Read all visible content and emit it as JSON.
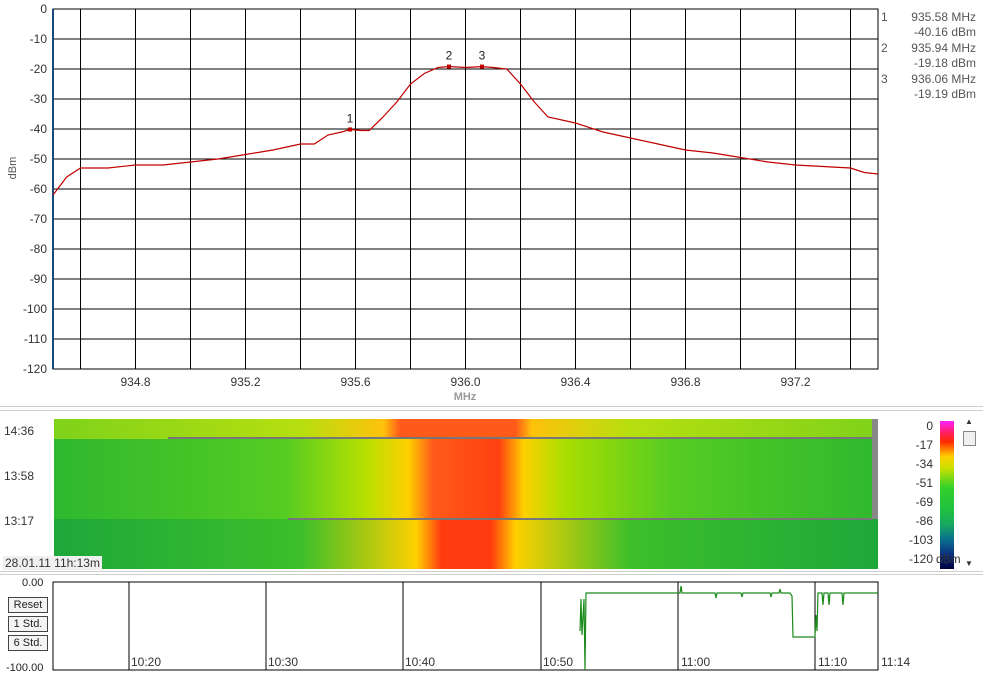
{
  "spectrum": {
    "y_axis_label": "dBm",
    "x_axis_label": "MHz",
    "y_ticks": [
      "0",
      "-10",
      "-20",
      "-30",
      "-40",
      "-50",
      "-60",
      "-70",
      "-80",
      "-90",
      "-100",
      "-110",
      "-120"
    ],
    "x_ticks": [
      "934.8",
      "935.2",
      "935.6",
      "936.0",
      "936.4",
      "936.8",
      "937.2"
    ],
    "trace_color": "#c00000",
    "markers": [
      {
        "num": "1",
        "freq": "935.58 MHz",
        "level": "-40.16 dBm"
      },
      {
        "num": "2",
        "freq": "935.94 MHz",
        "level": "-19.18 dBm"
      },
      {
        "num": "3",
        "freq": "936.06 MHz",
        "level": "-19.19 dBm"
      }
    ]
  },
  "chart_data": {
    "type": "line",
    "xlabel": "MHz",
    "ylabel": "dBm",
    "xlim": [
      934.5,
      937.5
    ],
    "ylim": [
      -120,
      0
    ],
    "series": [
      {
        "x": [
          934.5,
          934.55,
          934.6,
          934.65,
          934.7,
          934.8,
          934.9,
          935.0,
          935.1,
          935.2,
          935.3,
          935.4,
          935.45,
          935.5,
          935.55,
          935.58,
          935.62,
          935.65,
          935.7,
          935.75,
          935.8,
          935.85,
          935.9,
          935.94,
          936.0,
          936.06,
          936.1,
          936.15,
          936.2,
          936.25,
          936.3,
          936.4,
          936.5,
          936.6,
          936.7,
          936.8,
          936.9,
          937.0,
          937.1,
          937.2,
          937.3,
          937.4,
          937.45,
          937.5
        ],
        "y": [
          -62,
          -56,
          -53,
          -53,
          -53,
          -52,
          -52,
          -51,
          -50,
          -48.5,
          -47,
          -45,
          -45,
          -42,
          -41,
          -40.16,
          -40.5,
          -40.5,
          -36,
          -31,
          -25,
          -21.5,
          -19.5,
          -19.18,
          -19.5,
          -19.19,
          -19.5,
          -20,
          -25,
          -31,
          -36,
          -38,
          -41,
          -43,
          -45,
          -47,
          -48,
          -49.5,
          -51,
          -52,
          -52.5,
          -53,
          -54.5,
          -55
        ]
      }
    ]
  },
  "waterfall": {
    "times": [
      "14:36",
      "13:58",
      "13:17"
    ],
    "date_label": "28.01.11 11h:13m",
    "scale_labels": [
      "0",
      "-17",
      "-34",
      "-51",
      "-69",
      "-86",
      "-103",
      "-120"
    ],
    "scale_unit": "dBm"
  },
  "history": {
    "y_top": "0.00",
    "y_bottom": "-100.00",
    "buttons": [
      "Reset",
      "1 Std.",
      "6 Std."
    ],
    "times": [
      "10:20",
      "10:30",
      "10:40",
      "10:50",
      "11:00",
      "11:10",
      "11:14"
    ],
    "trace_color": "#1a8a1a"
  }
}
